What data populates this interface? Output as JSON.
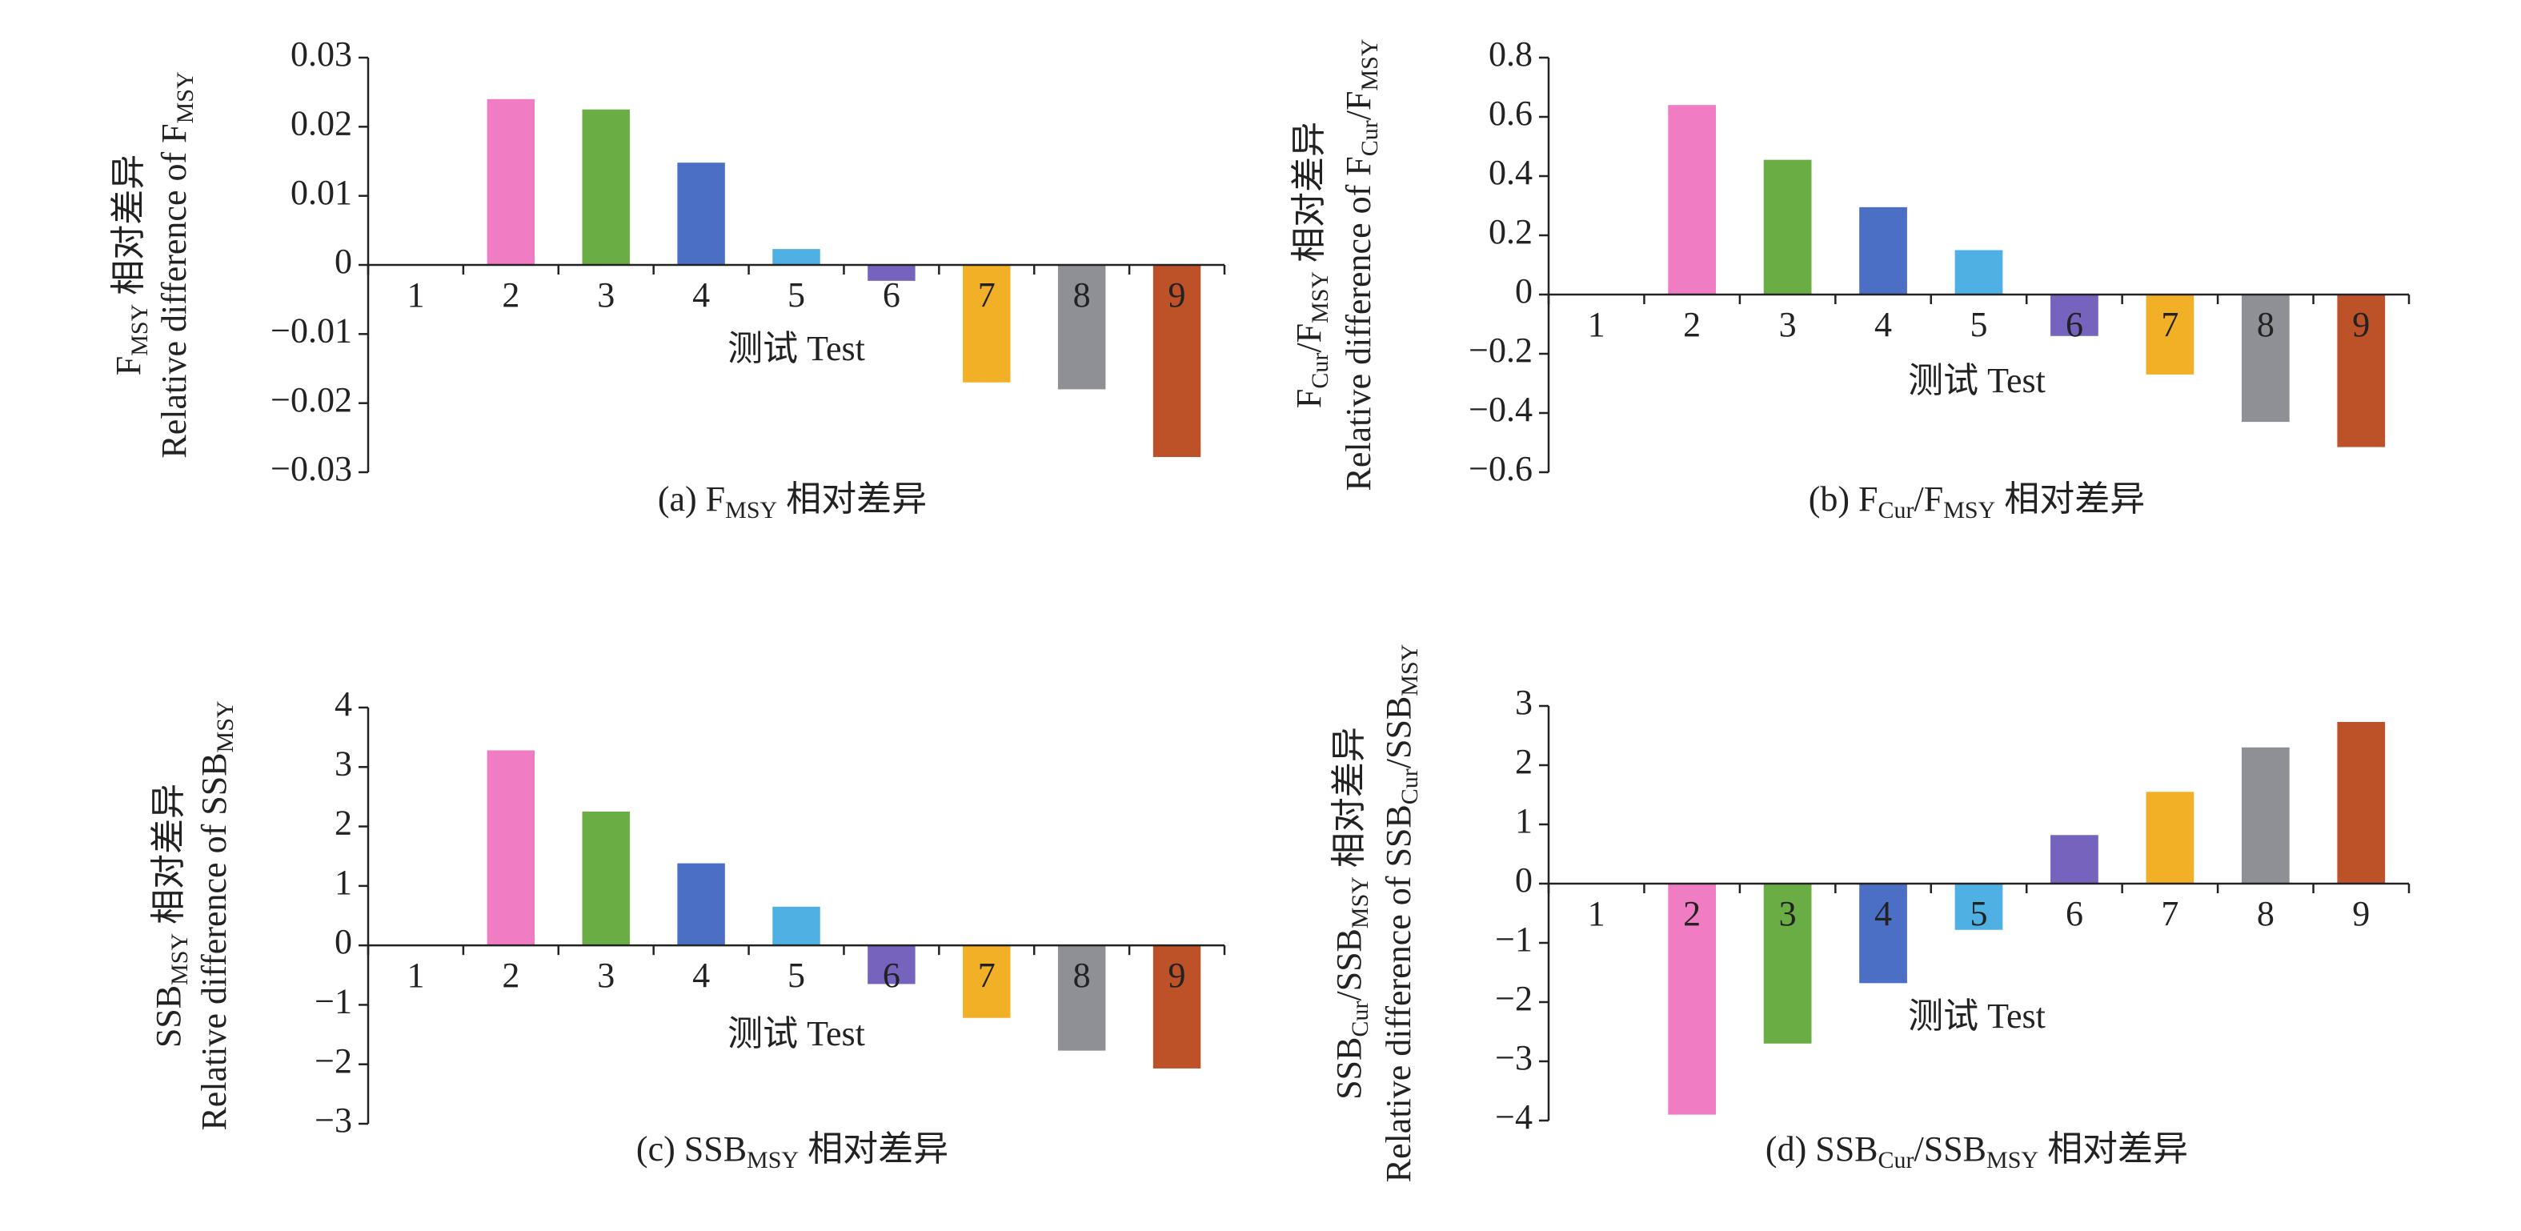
{
  "chart_data": [
    {
      "type": "bar",
      "caption": [
        "(a) F",
        "MSY",
        " 相对差异"
      ],
      "ylabel": [
        [
          "F",
          "MSY",
          " 相对差异"
        ],
        [
          "Relative difference of F",
          "MSY"
        ]
      ],
      "xlabel": "测试 Test",
      "categories": [
        "1",
        "2",
        "3",
        "4",
        "5",
        "6",
        "7",
        "8",
        "9"
      ],
      "values": [
        0,
        0.024,
        0.0225,
        0.0148,
        0.0023,
        -0.0023,
        -0.017,
        -0.018,
        -0.0278
      ],
      "colors": [
        "#4a6fc4",
        "#f07cc4",
        "#6aad45",
        "#4a6fc4",
        "#4fb0e3",
        "#7563be",
        "#f2b026",
        "#8e9095",
        "#bd5127"
      ],
      "ylim": [
        -0.03,
        0.03
      ],
      "yticks": [
        {
          "value": -0.03,
          "label": "−0.03"
        },
        {
          "value": -0.02,
          "label": "−0.02"
        },
        {
          "value": -0.01,
          "label": "−0.01"
        },
        0,
        0.01,
        0.02,
        0.03
      ]
    },
    {
      "type": "bar",
      "caption": [
        "(b) F",
        "Cur",
        "/F",
        "MSY",
        " 相对差异"
      ],
      "ylabel": [
        [
          "F",
          "Cur",
          "/F",
          "MSY",
          " 相对差异"
        ],
        [
          "Relative difference of F",
          "Cur",
          "/F",
          "MSY"
        ]
      ],
      "xlabel": "测试 Test",
      "categories": [
        "1",
        "2",
        "3",
        "4",
        "5",
        "6",
        "7",
        "8",
        "9"
      ],
      "values": [
        0,
        0.64,
        0.455,
        0.295,
        0.15,
        -0.14,
        -0.27,
        -0.43,
        -0.515
      ],
      "colors": [
        "#4a6fc4",
        "#f07cc4",
        "#6aad45",
        "#4a6fc4",
        "#4fb0e3",
        "#7563be",
        "#f2b026",
        "#8e9095",
        "#bd5127"
      ],
      "ylim": [
        -0.6,
        0.8
      ],
      "yticks": [
        {
          "value": -0.6,
          "label": "−0.6"
        },
        {
          "value": -0.4,
          "label": "−0.4"
        },
        {
          "value": -0.2,
          "label": "−0.2"
        },
        0,
        0.2,
        0.4,
        0.6,
        0.8
      ]
    },
    {
      "type": "bar",
      "caption": [
        "(c) SSB",
        "MSY",
        " 相对差异"
      ],
      "ylabel": [
        [
          "SSB",
          "MSY",
          " 相对差异"
        ],
        [
          "Relative difference of SSB",
          "MSY"
        ]
      ],
      "xlabel": "测试 Test",
      "categories": [
        "1",
        "2",
        "3",
        "4",
        "5",
        "6",
        "7",
        "8",
        "9"
      ],
      "values": [
        0,
        3.28,
        2.25,
        1.38,
        0.65,
        -0.65,
        -1.22,
        -1.77,
        -2.07
      ],
      "colors": [
        "#4a6fc4",
        "#f07cc4",
        "#6aad45",
        "#4a6fc4",
        "#4fb0e3",
        "#7563be",
        "#f2b026",
        "#8e9095",
        "#bd5127"
      ],
      "ylim": [
        -3,
        4
      ],
      "yticks": [
        {
          "value": -3,
          "label": "−3"
        },
        {
          "value": -2,
          "label": "−2"
        },
        {
          "value": -1,
          "label": "−1"
        },
        0,
        1,
        2,
        3,
        4
      ]
    },
    {
      "type": "bar",
      "caption": [
        "(d) SSB",
        "Cur",
        "/SSB",
        "MSY",
        " 相对差异"
      ],
      "ylabel": [
        [
          "SSB",
          "Cur",
          "/SSB",
          "MSY",
          " 相对差异"
        ],
        [
          "Relative difference of SSB",
          "Cur",
          "/SSB",
          "MSY"
        ]
      ],
      "xlabel": "测试 Test",
      "categories": [
        "1",
        "2",
        "3",
        "4",
        "5",
        "6",
        "7",
        "8",
        "9"
      ],
      "values": [
        0,
        -3.9,
        -2.7,
        -1.68,
        -0.78,
        0.82,
        1.55,
        2.3,
        2.73
      ],
      "colors": [
        "#4a6fc4",
        "#f07cc4",
        "#6aad45",
        "#4a6fc4",
        "#4fb0e3",
        "#7563be",
        "#f2b026",
        "#8e9095",
        "#bd5127"
      ],
      "ylim": [
        -4,
        3
      ],
      "yticks": [
        {
          "value": -4,
          "label": "−4"
        },
        {
          "value": -3,
          "label": "−3"
        },
        {
          "value": -2,
          "label": "−2"
        },
        {
          "value": -1,
          "label": "−1"
        },
        0,
        1,
        2,
        3
      ]
    }
  ]
}
